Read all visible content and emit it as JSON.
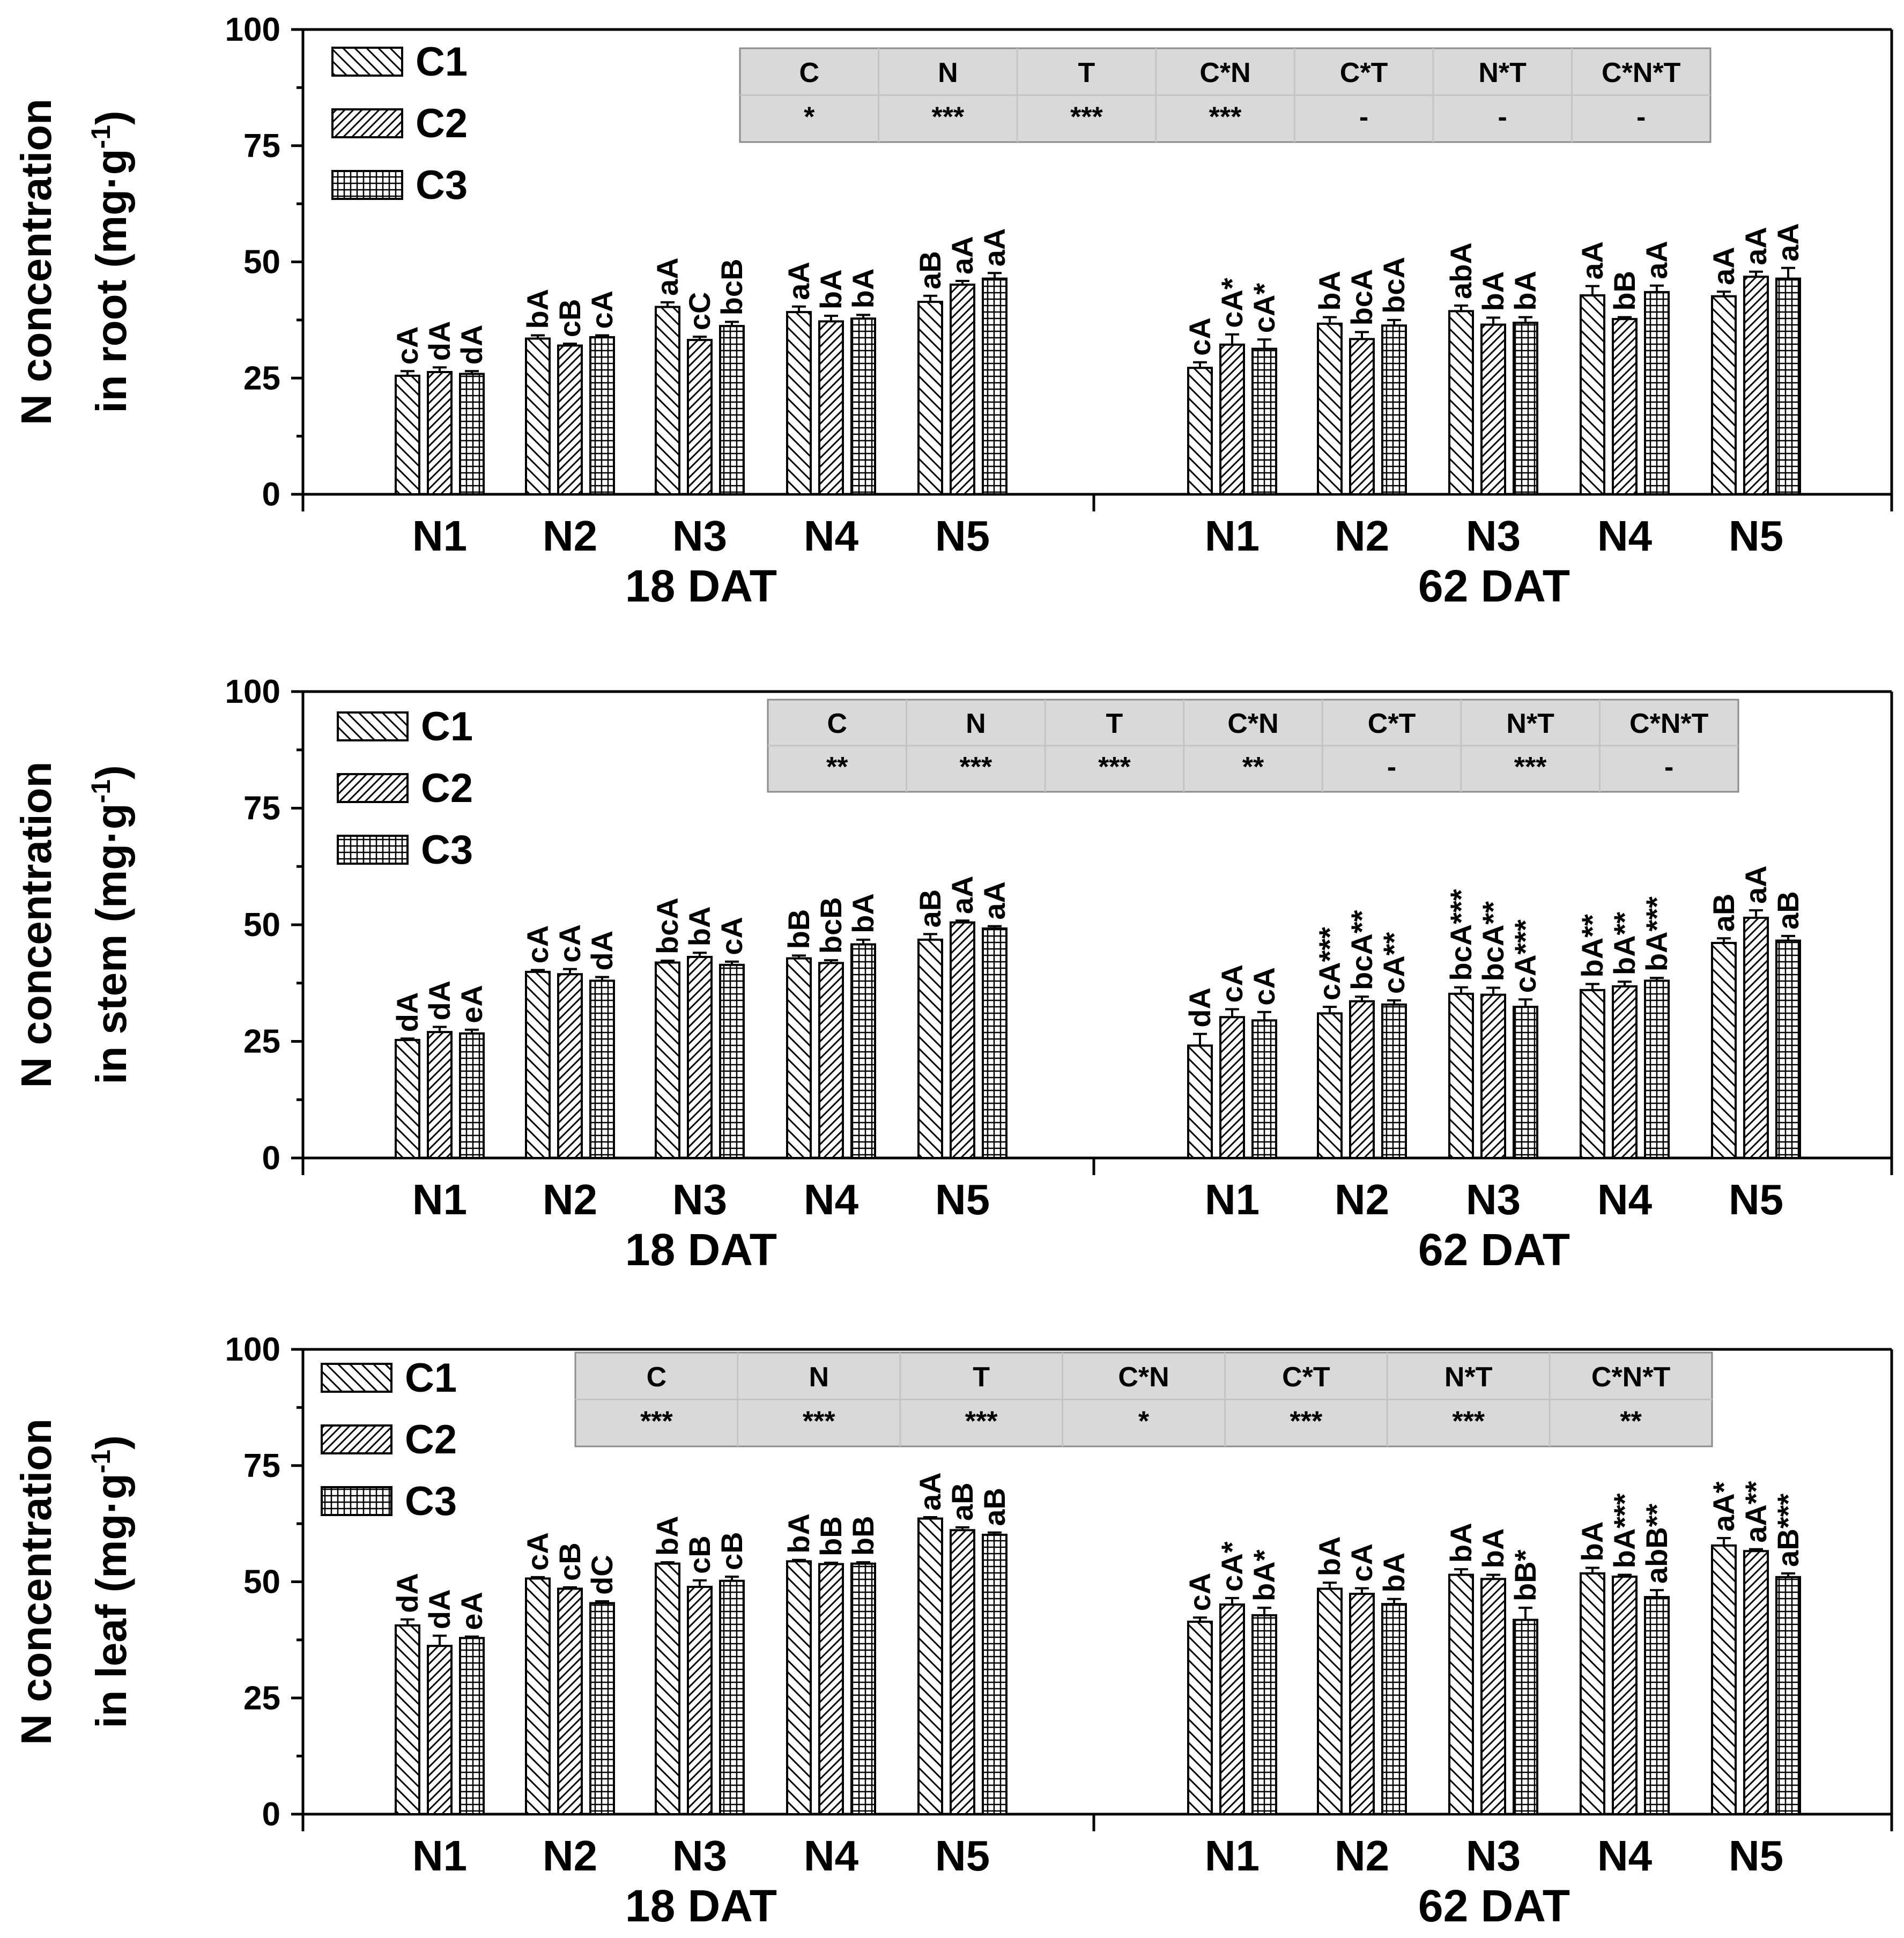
{
  "chart_data": [
    {
      "type": "bar",
      "ylabel_line1": "N concentration",
      "ylabel_line2": "in root (mg·g",
      "ylabel_sup": "-1",
      "ylabel_close": ")",
      "ylim": [
        0,
        100
      ],
      "yticks": [
        "0",
        "25",
        "50",
        "75",
        "100"
      ],
      "groups": [
        "18 DAT",
        "62 DAT"
      ],
      "categories": [
        "N1",
        "N2",
        "N3",
        "N4",
        "N5"
      ],
      "legend": [
        "C1",
        "C2",
        "C3"
      ],
      "anova": {
        "headers": [
          "C",
          "N",
          "T",
          "C*N",
          "C*T",
          "N*T",
          "C*N*T"
        ],
        "values": [
          "*",
          "***",
          "***",
          "***",
          "-",
          "-",
          "-"
        ]
      },
      "series": [
        {
          "name": "C1",
          "values_18": [
            25.5,
            33.5,
            40.3,
            39.2,
            41.4
          ],
          "values_62": [
            27.2,
            36.7,
            39.4,
            42.8,
            42.6
          ],
          "err_18": [
            1.0,
            0.7,
            1.0,
            1.2,
            1.3
          ],
          "err_62": [
            1.2,
            1.4,
            1.2,
            2.0,
            1.0
          ],
          "labels_18": [
            "cA",
            "bA",
            "aA",
            "aA",
            "aB"
          ],
          "labels_62": [
            "cA",
            "bA",
            "abA",
            "aA",
            "aA"
          ]
        },
        {
          "name": "C2",
          "values_18": [
            26.3,
            32.0,
            33.2,
            37.2,
            45.1
          ],
          "values_62": [
            32.2,
            33.4,
            36.5,
            37.7,
            46.8
          ],
          "err_18": [
            1.0,
            0.4,
            0.7,
            1.2,
            0.8
          ],
          "err_62": [
            2.2,
            1.5,
            1.5,
            0.4,
            1.1
          ],
          "labels_18": [
            "dA",
            "cB",
            "cC",
            "bA",
            "aA"
          ],
          "labels_62": [
            "cA*",
            "bcA",
            "bA",
            "bB",
            "aA"
          ]
        },
        {
          "name": "C3",
          "values_18": [
            25.9,
            33.8,
            36.2,
            37.8,
            46.4
          ],
          "values_62": [
            31.3,
            36.3,
            36.9,
            43.5,
            46.4
          ],
          "err_18": [
            0.6,
            0.4,
            0.9,
            0.8,
            1.2
          ],
          "err_62": [
            2.0,
            1.2,
            1.2,
            1.4,
            2.3
          ],
          "labels_18": [
            "dA",
            "cA",
            "bcB",
            "bA",
            "aA"
          ],
          "labels_62": [
            "cA*",
            "bcA",
            "bA",
            "aA",
            "aA"
          ]
        }
      ]
    },
    {
      "type": "bar",
      "ylabel_line1": "N concentration",
      "ylabel_line2": "in stem (mg·g",
      "ylabel_sup": "-1",
      "ylabel_close": ")",
      "ylim": [
        0,
        100
      ],
      "yticks": [
        "0",
        "25",
        "50",
        "75",
        "100"
      ],
      "groups": [
        "18 DAT",
        "62 DAT"
      ],
      "categories": [
        "N1",
        "N2",
        "N3",
        "N4",
        "N5"
      ],
      "legend": [
        "C1",
        "C2",
        "C3"
      ],
      "anova": {
        "headers": [
          "C",
          "N",
          "T",
          "C*N",
          "C*T",
          "N*T",
          "C*N*T"
        ],
        "values": [
          "**",
          "***",
          "***",
          "**",
          "-",
          "***",
          "-"
        ]
      },
      "series": [
        {
          "name": "C1",
          "values_18": [
            25.3,
            39.9,
            41.9,
            42.8,
            46.8
          ],
          "values_62": [
            24.1,
            31.0,
            35.2,
            36.0,
            46.1
          ],
          "err_18": [
            0.3,
            0.4,
            0.4,
            0.6,
            1.2
          ],
          "err_62": [
            2.5,
            1.4,
            1.4,
            1.3,
            1.0
          ],
          "labels_18": [
            "dA",
            "cA",
            "bcA",
            "bB",
            "aB"
          ],
          "labels_62": [
            "dA",
            "cA***",
            "bcA***",
            "bA**",
            "aB"
          ]
        },
        {
          "name": "C2",
          "values_18": [
            27.0,
            39.4,
            43.1,
            41.8,
            50.5
          ],
          "values_62": [
            30.2,
            33.6,
            35.0,
            36.8,
            51.5
          ],
          "err_18": [
            1.1,
            1.1,
            0.9,
            0.6,
            0.4
          ],
          "err_62": [
            1.7,
            1.0,
            1.5,
            1.0,
            1.6
          ],
          "labels_18": [
            "dA",
            "cA",
            "bA",
            "bcB",
            "aA"
          ],
          "labels_62": [
            "cA",
            "bcA**",
            "bcA**",
            "bA**",
            "aA"
          ]
        },
        {
          "name": "C3",
          "values_18": [
            26.7,
            38.0,
            41.4,
            45.8,
            49.2
          ],
          "values_62": [
            29.5,
            32.9,
            32.4,
            38.0,
            46.6
          ],
          "err_18": [
            0.8,
            0.8,
            0.7,
            1.0,
            0.5
          ],
          "err_62": [
            1.8,
            0.9,
            1.6,
            0.6,
            1.0
          ],
          "labels_18": [
            "eA",
            "dA",
            "cA",
            "bA",
            "aA"
          ],
          "labels_62": [
            "cA",
            "cA**",
            "cA***",
            "bA***",
            "aB"
          ]
        }
      ]
    },
    {
      "type": "bar",
      "ylabel_line1": "N concentration",
      "ylabel_line2": "in leaf (mg·g",
      "ylabel_sup": "-1",
      "ylabel_close": ")",
      "ylim": [
        0,
        100
      ],
      "yticks": [
        "0",
        "25",
        "50",
        "75",
        "100"
      ],
      "groups": [
        "18 DAT",
        "62 DAT"
      ],
      "categories": [
        "N1",
        "N2",
        "N3",
        "N4",
        "N5"
      ],
      "legend": [
        "C1",
        "C2",
        "C3"
      ],
      "anova": {
        "headers": [
          "C",
          "N",
          "T",
          "C*N",
          "C*T",
          "N*T",
          "C*N*T"
        ],
        "values": [
          "***",
          "***",
          "***",
          "*",
          "***",
          "***",
          "**"
        ]
      },
      "series": [
        {
          "name": "C1",
          "values_18": [
            40.6,
            50.7,
            53.9,
            54.4,
            63.6
          ],
          "values_62": [
            41.4,
            48.5,
            51.5,
            51.8,
            57.8
          ],
          "err_18": [
            1.3,
            0.3,
            0.3,
            0.3,
            0.3
          ],
          "err_62": [
            0.9,
            1.3,
            1.2,
            1.2,
            1.6
          ],
          "labels_18": [
            "dA",
            "cA",
            "bA",
            "bA",
            "aA"
          ],
          "labels_62": [
            "cA",
            "bA",
            "bA",
            "bA",
            "aA*"
          ]
        },
        {
          "name": "C2",
          "values_18": [
            36.2,
            48.5,
            48.9,
            53.8,
            61.1
          ],
          "values_62": [
            45.1,
            47.4,
            50.6,
            51.1,
            56.6
          ],
          "err_18": [
            2.2,
            0.3,
            1.4,
            0.3,
            0.6
          ],
          "err_62": [
            1.4,
            1.2,
            0.9,
            0.4,
            0.4
          ],
          "labels_18": [
            "dA",
            "cB",
            "cB",
            "bB",
            "aB"
          ],
          "labels_62": [
            "cA*",
            "cA",
            "bA",
            "bA***",
            "aA**"
          ]
        },
        {
          "name": "C3",
          "values_18": [
            37.9,
            45.4,
            50.2,
            53.9,
            60.1
          ],
          "values_62": [
            42.8,
            45.2,
            41.8,
            46.7,
            51.0
          ],
          "err_18": [
            0.3,
            0.4,
            0.9,
            0.3,
            0.5
          ],
          "err_62": [
            1.6,
            1.1,
            2.6,
            1.5,
            0.8
          ],
          "labels_18": [
            "eA",
            "dC",
            "cB",
            "bB",
            "aB"
          ],
          "labels_62": [
            "bA*",
            "bA",
            "bB*",
            "abB**",
            "aB***"
          ]
        }
      ]
    }
  ]
}
